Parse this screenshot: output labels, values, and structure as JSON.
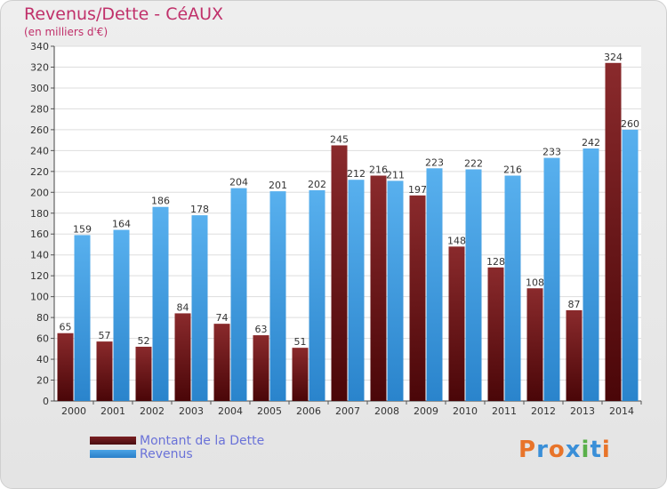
{
  "title": "Revenus/Dette - CéAUX",
  "subtitle": "(en milliers d'€)",
  "colors": {
    "debt": "#7a1f22",
    "revenue": "#4aa3e6",
    "title": "#c0306a",
    "legend_text": "#6a72d8"
  },
  "legend": [
    {
      "label": "Montant de la Dette",
      "color": "#7a1f22"
    },
    {
      "label": "Revenus",
      "color": "#4aa3e6"
    }
  ],
  "logo": {
    "text": "Proxiti",
    "letters": [
      "P",
      "r",
      "o",
      "x",
      "i",
      "t",
      "i"
    ],
    "colors": [
      "#e8742a",
      "#3a8fd8",
      "#e8742a",
      "#3a8fd8",
      "#5ab04a",
      "#3a8fd8",
      "#e8742a"
    ]
  },
  "chart_data": {
    "type": "bar",
    "categories": [
      "2000",
      "2001",
      "2002",
      "2003",
      "2004",
      "2005",
      "2006",
      "2007",
      "2008",
      "2009",
      "2010",
      "2011",
      "2012",
      "2013",
      "2014"
    ],
    "series": [
      {
        "name": "Montant de la Dette",
        "values": [
          65,
          57,
          52,
          84,
          74,
          63,
          51,
          245,
          216,
          197,
          148,
          128,
          108,
          87,
          324
        ]
      },
      {
        "name": "Revenus",
        "values": [
          159,
          164,
          186,
          178,
          204,
          201,
          202,
          212,
          211,
          223,
          222,
          216,
          233,
          242,
          260
        ]
      }
    ],
    "ylim": [
      0,
      340
    ],
    "yticks": [
      0,
      20,
      40,
      60,
      80,
      100,
      120,
      140,
      160,
      180,
      200,
      220,
      240,
      260,
      280,
      300,
      320,
      340
    ],
    "grid": true,
    "legend_position": "bottom-left"
  }
}
